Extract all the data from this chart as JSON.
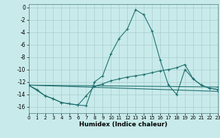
{
  "xlabel": "Humidex (Indice chaleur)",
  "xlim": [
    0,
    23
  ],
  "ylim": [
    -17,
    0.5
  ],
  "yticks": [
    0,
    -2,
    -4,
    -6,
    -8,
    -10,
    -12,
    -14,
    -16
  ],
  "xticks": [
    0,
    1,
    2,
    3,
    4,
    5,
    6,
    7,
    8,
    9,
    10,
    11,
    12,
    13,
    14,
    15,
    16,
    17,
    18,
    19,
    20,
    21,
    22,
    23
  ],
  "bg_color": "#c8eaea",
  "grid_color": "#a8cccc",
  "line_color": "#1e6e6e",
  "curve1_x": [
    0,
    1,
    2,
    3,
    4,
    5,
    6,
    7,
    8,
    9,
    10,
    11,
    12,
    13,
    14,
    15,
    16,
    17,
    18,
    19,
    20,
    21,
    22,
    23
  ],
  "curve1_y": [
    -12.5,
    -13.2,
    -14.2,
    -14.7,
    -15.3,
    -15.5,
    -15.7,
    -15.8,
    -12.0,
    -11.0,
    -7.5,
    -5.0,
    -3.5,
    -0.4,
    -1.2,
    -3.8,
    -8.5,
    -12.5,
    -14.0,
    -10.0,
    -11.5,
    -12.5,
    -13.0,
    -13.2
  ],
  "curve2_x": [
    0,
    2,
    3,
    4,
    5,
    6,
    7,
    8,
    9,
    10,
    11,
    12,
    13,
    14,
    15,
    16,
    17,
    18,
    19,
    20,
    21,
    22,
    23
  ],
  "curve2_y": [
    -12.5,
    -14.2,
    -14.7,
    -15.3,
    -15.5,
    -15.7,
    -14.2,
    -12.7,
    -12.3,
    -11.8,
    -11.5,
    -11.2,
    -11.0,
    -10.8,
    -10.5,
    -10.2,
    -10.0,
    -9.7,
    -9.2,
    -11.5,
    -12.5,
    -13.0,
    -13.2
  ],
  "line3_x": [
    0,
    23
  ],
  "line3_y": [
    -12.5,
    -13.5
  ],
  "line4_x": [
    0,
    23
  ],
  "line4_y": [
    -12.5,
    -12.8
  ]
}
